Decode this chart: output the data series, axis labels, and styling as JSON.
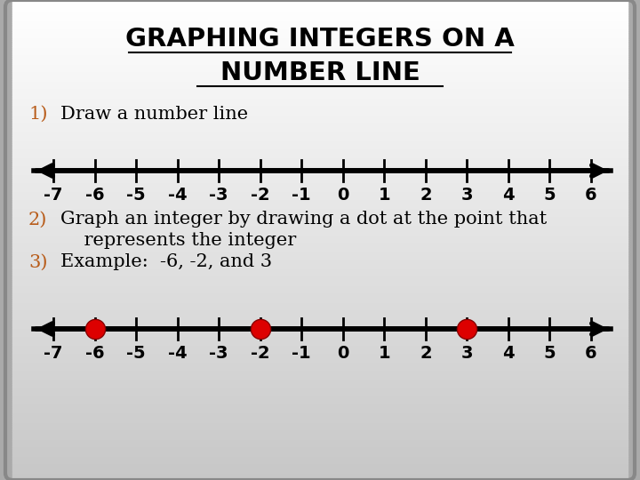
{
  "title_line1": "GRAPHING INTEGERS ON A",
  "title_line2": "NUMBER LINE",
  "title_fontsize": 21,
  "title_color": "#000000",
  "step1_label": "1)",
  "step1_text": "Draw a number line",
  "step2_label": "2)",
  "step2_text_line1": "Graph an integer by drawing a dot at the point that",
  "step2_text_line2": "    represents the integer",
  "step3_label": "3)",
  "step3_text": "Example:  -6, -2, and 3",
  "number_line_ticks": [
    -7,
    -6,
    -5,
    -4,
    -3,
    -2,
    -1,
    0,
    1,
    2,
    3,
    4,
    5,
    6
  ],
  "highlighted_points": [
    -6,
    -2,
    3
  ],
  "dot_color": "#dd0000",
  "label_color_number": "#b85c1a",
  "text_color": "#000000",
  "body_fontsize": 15,
  "tick_fontsize": 14,
  "line_width": 4
}
